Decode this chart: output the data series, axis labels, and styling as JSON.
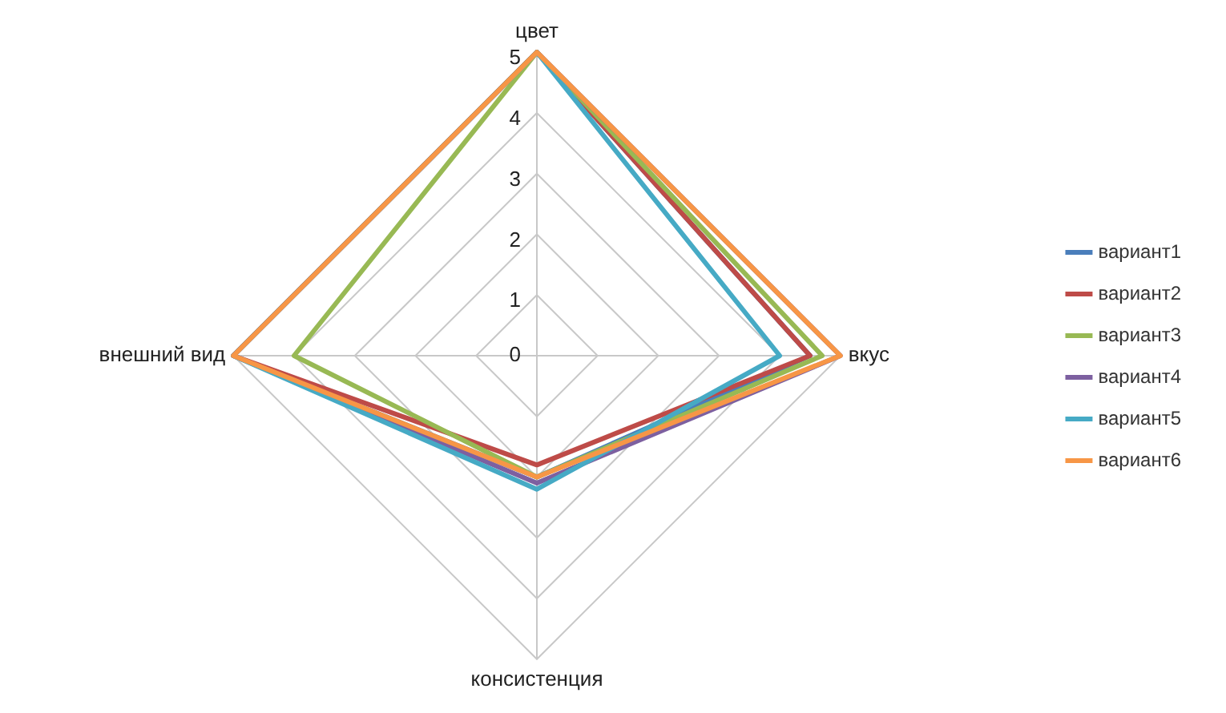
{
  "chart_data": {
    "type": "radar",
    "categories": [
      "цвет",
      "вкус",
      "консистенция",
      "внешний вид"
    ],
    "ylim": [
      0,
      5
    ],
    "yticks": [
      0,
      1,
      2,
      3,
      4,
      5
    ],
    "grid": true,
    "legend": "right",
    "series": [
      {
        "name": "вариант1",
        "color": "#4a7ebb",
        "values": [
          5,
          4.5,
          2,
          5
        ]
      },
      {
        "name": "вариант2",
        "color": "#be4b48",
        "values": [
          5,
          4.5,
          1.8,
          5
        ]
      },
      {
        "name": "вариант3",
        "color": "#98b954",
        "values": [
          5,
          4.7,
          2,
          4
        ]
      },
      {
        "name": "вариант4",
        "color": "#7d60a0",
        "values": [
          5,
          5,
          2.1,
          5
        ]
      },
      {
        "name": "вариант5",
        "color": "#46aac5",
        "values": [
          5,
          4,
          2.2,
          5
        ]
      },
      {
        "name": "вариант6",
        "color": "#f79646",
        "values": [
          5,
          5,
          2,
          5
        ]
      }
    ]
  }
}
